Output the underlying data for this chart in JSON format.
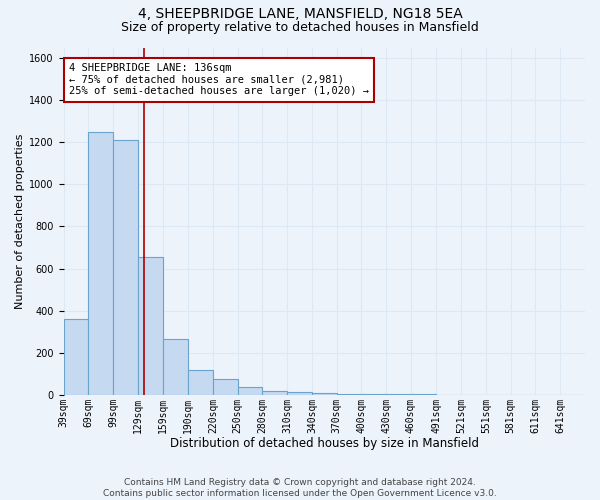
{
  "title1": "4, SHEEPBRIDGE LANE, MANSFIELD, NG18 5EA",
  "title2": "Size of property relative to detached houses in Mansfield",
  "xlabel": "Distribution of detached houses by size in Mansfield",
  "ylabel": "Number of detached properties",
  "bin_edges": [
    39,
    69,
    99,
    129,
    159,
    190,
    220,
    250,
    280,
    310,
    340,
    370,
    400,
    430,
    460,
    491,
    521,
    551,
    581,
    611,
    641,
    671
  ],
  "bar_heights": [
    360,
    1250,
    1210,
    655,
    265,
    120,
    75,
    35,
    20,
    15,
    10,
    5,
    3,
    2,
    2,
    1,
    1,
    1,
    1,
    1,
    1
  ],
  "bar_color": "#c5d9f0",
  "bar_edge_color": "#6aa3cc",
  "bar_linewidth": 0.8,
  "grid_color": "#dde8f5",
  "background_color": "#edf3fb",
  "red_line_x": 136,
  "red_line_color": "#aa0000",
  "annotation_text": "4 SHEEPBRIDGE LANE: 136sqm\n← 75% of detached houses are smaller (2,981)\n25% of semi-detached houses are larger (1,020) →",
  "annotation_box_color": "white",
  "annotation_box_edge": "#aa0000",
  "ylim": [
    0,
    1650
  ],
  "yticks": [
    0,
    200,
    400,
    600,
    800,
    1000,
    1200,
    1400,
    1600
  ],
  "tick_labels": [
    "39sqm",
    "69sqm",
    "99sqm",
    "129sqm",
    "159sqm",
    "190sqm",
    "220sqm",
    "250sqm",
    "280sqm",
    "310sqm",
    "340sqm",
    "370sqm",
    "400sqm",
    "430sqm",
    "460sqm",
    "491sqm",
    "521sqm",
    "551sqm",
    "581sqm",
    "611sqm",
    "641sqm"
  ],
  "footer": "Contains HM Land Registry data © Crown copyright and database right 2024.\nContains public sector information licensed under the Open Government Licence v3.0.",
  "title1_fontsize": 10,
  "title2_fontsize": 9,
  "xlabel_fontsize": 8.5,
  "ylabel_fontsize": 8,
  "tick_fontsize": 7,
  "annotation_fontsize": 7.5,
  "footer_fontsize": 6.5
}
